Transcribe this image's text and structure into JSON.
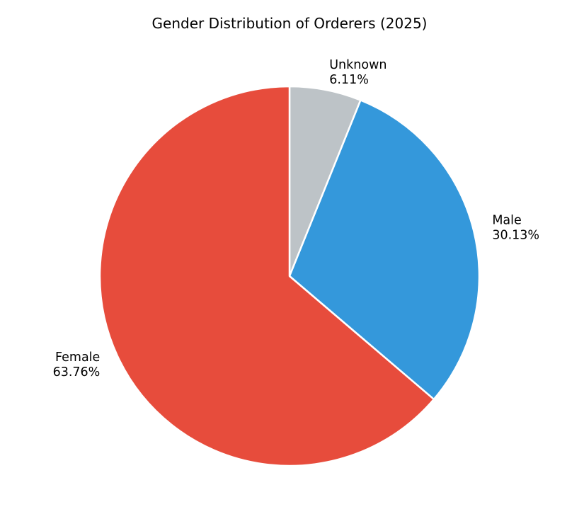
{
  "chart_data": {
    "type": "pie",
    "title": "Gender Distribution of Orderers (2025)",
    "categories": [
      "Unknown",
      "Male",
      "Female"
    ],
    "values": [
      6.11,
      30.13,
      63.76
    ],
    "value_labels": [
      "6.11%",
      "30.13%",
      "63.76%"
    ],
    "colors": [
      "#bdc3c7",
      "#3498db",
      "#e74c3c"
    ]
  }
}
